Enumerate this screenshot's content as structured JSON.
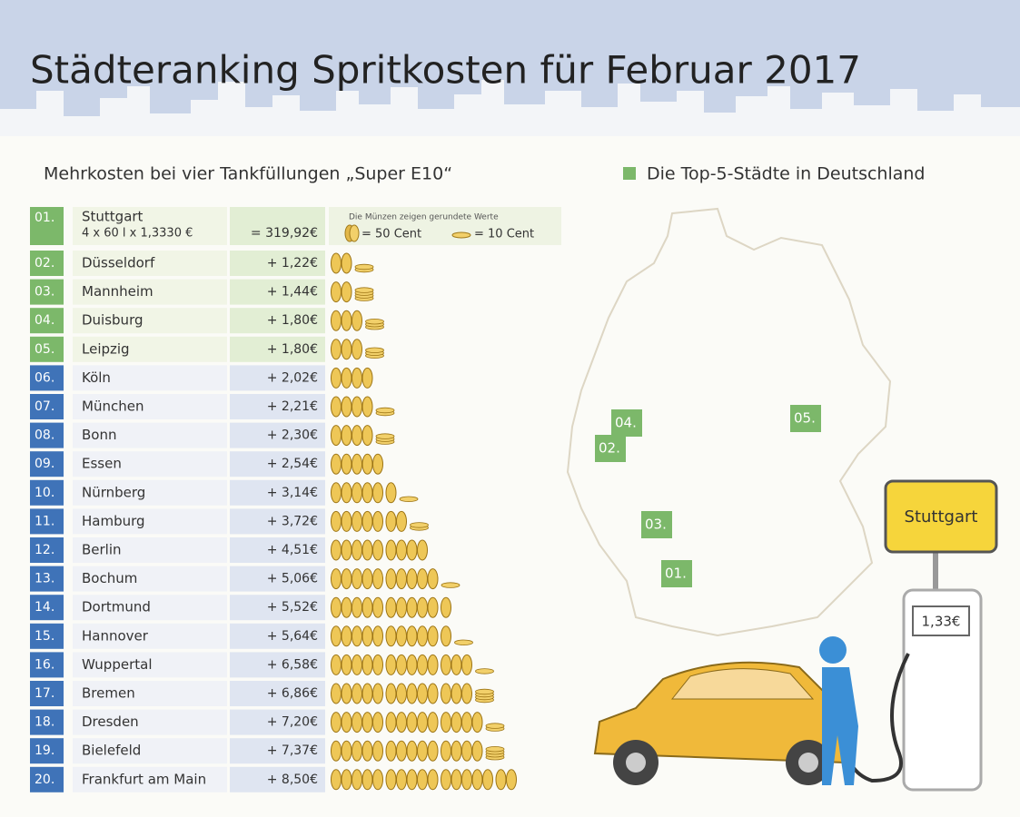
{
  "header": {
    "title": "Städteranking Spritkosten für Februar 2017"
  },
  "table": {
    "subtitle": "Mehrkosten bei vier Tankfüllungen „Super E10“",
    "first": {
      "rank": "01.",
      "city": "Stuttgart",
      "formula": "4 x 60 l x 1,3330 €",
      "total": "= 319,92€"
    },
    "coin_legend": {
      "note": "Die Münzen zeigen gerundete Werte",
      "fifty": "= 50 Cent",
      "ten": "= 10 Cent"
    },
    "rows": [
      {
        "rank": "02.",
        "city": "Düsseldorf",
        "extra": "+ 1,22€",
        "coins_50": 2,
        "coins_10": 2
      },
      {
        "rank": "03.",
        "city": "Mannheim",
        "extra": "+ 1,44€",
        "coins_50": 2,
        "coins_10": 4
      },
      {
        "rank": "04.",
        "city": "Duisburg",
        "extra": "+ 1,80€",
        "coins_50": 3,
        "coins_10": 3
      },
      {
        "rank": "05.",
        "city": "Leipzig",
        "extra": "+ 1,80€",
        "coins_50": 3,
        "coins_10": 3
      },
      {
        "rank": "06.",
        "city": "Köln",
        "extra": "+ 2,02€",
        "coins_50": 4,
        "coins_10": 0
      },
      {
        "rank": "07.",
        "city": "München",
        "extra": "+ 2,21€",
        "coins_50": 4,
        "coins_10": 2
      },
      {
        "rank": "08.",
        "city": "Bonn",
        "extra": "+ 2,30€",
        "coins_50": 4,
        "coins_10": 3
      },
      {
        "rank": "09.",
        "city": "Essen",
        "extra": "+ 2,54€",
        "coins_50": 5,
        "coins_10": 0
      },
      {
        "rank": "10.",
        "city": "Nürnberg",
        "extra": "+ 3,14€",
        "coins_50": 6,
        "coins_10": 1
      },
      {
        "rank": "11.",
        "city": "Hamburg",
        "extra": "+ 3,72€",
        "coins_50": 7,
        "coins_10": 2
      },
      {
        "rank": "12.",
        "city": "Berlin",
        "extra": "+ 4,51€",
        "coins_50": 9,
        "coins_10": 0
      },
      {
        "rank": "13.",
        "city": "Bochum",
        "extra": "+ 5,06€",
        "coins_50": 10,
        "coins_10": 1
      },
      {
        "rank": "14.",
        "city": "Dortmund",
        "extra": "+ 5,52€",
        "coins_50": 11,
        "coins_10": 0
      },
      {
        "rank": "15.",
        "city": "Hannover",
        "extra": "+ 5,64€",
        "coins_50": 11,
        "coins_10": 1
      },
      {
        "rank": "16.",
        "city": "Wuppertal",
        "extra": "+ 6,58€",
        "coins_50": 13,
        "coins_10": 1
      },
      {
        "rank": "17.",
        "city": "Bremen",
        "extra": "+ 6,86€",
        "coins_50": 13,
        "coins_10": 4
      },
      {
        "rank": "18.",
        "city": "Dresden",
        "extra": "+ 7,20€",
        "coins_50": 14,
        "coins_10": 2
      },
      {
        "rank": "19.",
        "city": "Bielefeld",
        "extra": "+ 7,37€",
        "coins_50": 14,
        "coins_10": 4
      },
      {
        "rank": "20.",
        "city": "Frankfurt am Main",
        "extra": "+ 8,50€",
        "coins_50": 17,
        "coins_10": 0
      }
    ]
  },
  "map": {
    "legend": "Die Top-5-Städte in Deutschland",
    "markers": [
      "01.",
      "02.",
      "03.",
      "04.",
      "05."
    ],
    "sign": "Stuttgart",
    "price": "1,33€"
  }
}
